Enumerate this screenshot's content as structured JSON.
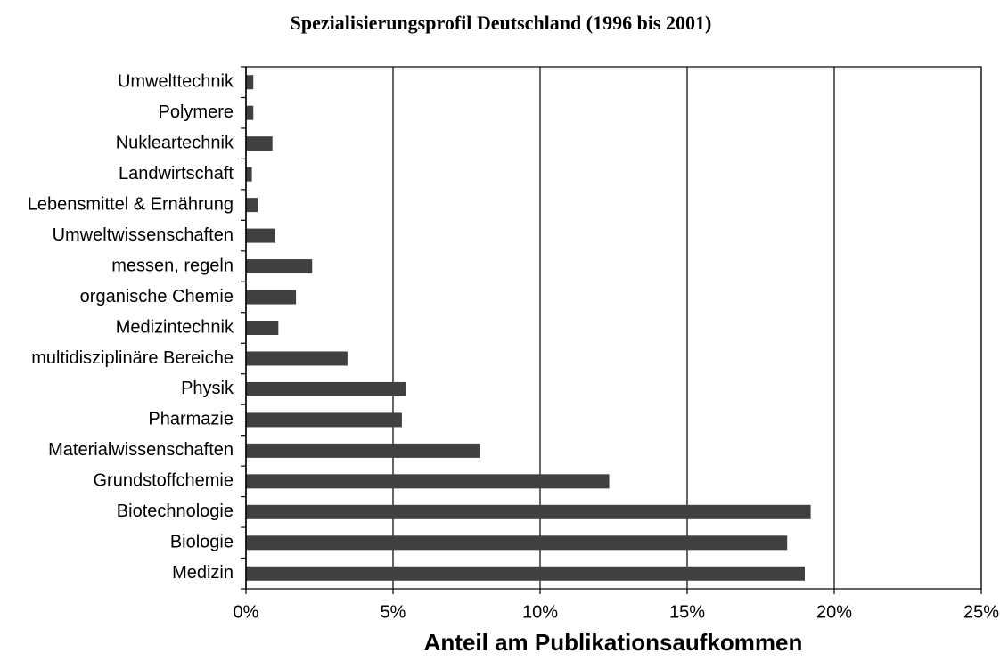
{
  "chart_data": {
    "type": "bar",
    "orientation": "horizontal",
    "title": "Spezialisierungsprofil Deutschland (1996 bis 2001)",
    "xlabel": "Anteil am Publikationsaufkommen",
    "categories": [
      "Umwelttechnik",
      "Polymere",
      "Nukleartechnik",
      "Landwirtschaft",
      "Lebensmittel & Ernährung",
      "Umweltwissenschaften",
      "messen, regeln",
      "organische Chemie",
      "Medizintechnik",
      "multidisziplinäre Bereiche",
      "Physik",
      "Pharmazie",
      "Materialwissenschaften",
      "Grundstoffchemie",
      "Biotechnologie",
      "Biologie",
      "Medizin"
    ],
    "values": [
      0.25,
      0.25,
      0.9,
      0.2,
      0.4,
      1.0,
      2.25,
      1.7,
      1.1,
      3.45,
      5.45,
      5.3,
      7.95,
      12.35,
      19.2,
      18.4,
      19.0
    ],
    "color": "#404040",
    "xlim": [
      0,
      25
    ],
    "xticks": [
      {
        "value": 0,
        "label": "0%"
      },
      {
        "value": 5,
        "label": "5%"
      },
      {
        "value": 10,
        "label": "10%"
      },
      {
        "value": 15,
        "label": "15%"
      },
      {
        "value": 20,
        "label": "20%"
      },
      {
        "value": 25,
        "label": "25%"
      }
    ],
    "grid": true
  }
}
